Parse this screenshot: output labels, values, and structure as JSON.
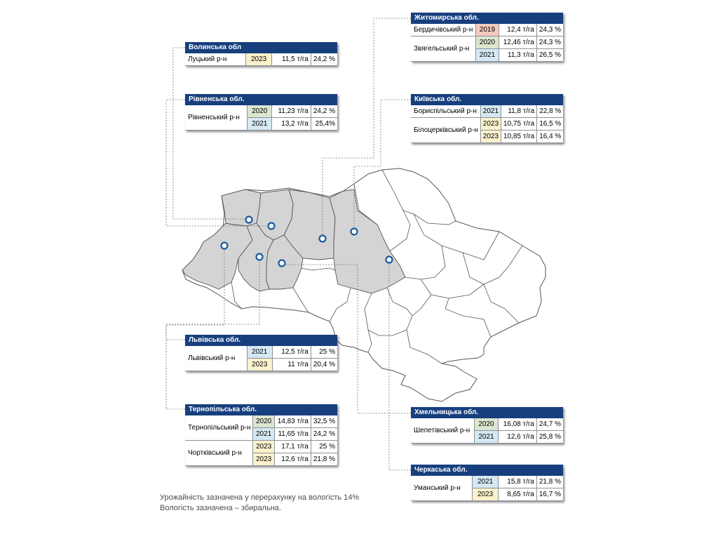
{
  "cards": [
    {
      "region": "Волинська обл",
      "rows": [
        [
          "Луцький р-н",
          "2023",
          "11,5 т/га",
          "24,2 %"
        ]
      ]
    },
    {
      "region": "Рівненська обл.",
      "rows": [
        [
          "Рівненський р-н",
          "2020",
          "11,23 т/га",
          "24,2 %"
        ],
        [
          "",
          "2021",
          "13,2 т/га",
          "25,4%"
        ]
      ]
    },
    {
      "region": "Житомирська обл.",
      "rows": [
        [
          "Бердичівський р-н",
          "2019",
          "12,4 т/га",
          "24,3 %"
        ],
        [
          "Звягельський р-н",
          "2020",
          "12,46 т/га",
          "24,3 %"
        ],
        [
          "",
          "2021",
          "11,3 т/га",
          "26,5 %"
        ]
      ]
    },
    {
      "region": "Київська обл.",
      "rows": [
        [
          "Бориспільський р-н",
          "2021",
          "11,8 т/га",
          "22,8 %"
        ],
        [
          "Білоцерківський р-н",
          "2023",
          "10,75 т/га",
          "16,5 %"
        ],
        [
          "",
          "2023",
          "10,85 т/га",
          "16,4 %"
        ]
      ]
    },
    {
      "region": "Львівська обл.",
      "rows": [
        [
          "Львівський р-н",
          "2021",
          "12,5 т/га",
          "25 %"
        ],
        [
          "",
          "2023",
          "11 т/га",
          "20,4 %"
        ]
      ]
    },
    {
      "region": "Тернопільська обл.",
      "rows": [
        [
          "Тернопільський р-н",
          "2020",
          "14,83 т/га",
          "32,5 %"
        ],
        [
          "",
          "2021",
          "11,65 т/га",
          "24,2 %"
        ],
        [
          "Чортківський р-н",
          "2023",
          "17,1 т/га",
          "25 %"
        ],
        [
          "",
          "2023",
          "12,6 т/га",
          "21,8 %"
        ]
      ]
    },
    {
      "region": "Хмельницька обл.",
      "rows": [
        [
          "Шепетівський р-н",
          "2020",
          "16,08 т/га",
          "24,7 %"
        ],
        [
          "",
          "2021",
          "12,6 т/га",
          "25,8 %"
        ]
      ]
    },
    {
      "region": "Черкаська обл.",
      "rows": [
        [
          "Уманський р-н",
          "2021",
          "15,8 т/га",
          "21,8 %"
        ],
        [
          "",
          "2023",
          "8,65 т/га",
          "16,7 %"
        ]
      ]
    }
  ],
  "notes": [
    "Урожайність зазначена у перерахунку на вологість 14%",
    "Вологість зазначена – збиральна."
  ],
  "colors": {
    "header": "#173f7e",
    "marker": "#1b5a9e",
    "highlight_region": "#d4d4d4",
    "map_border": "#555555",
    "year_2019": "#f4c9be",
    "year_2020": "#dbe6cf",
    "year_2021": "#d5e8f3",
    "year_2023": "#fbf2cd"
  }
}
